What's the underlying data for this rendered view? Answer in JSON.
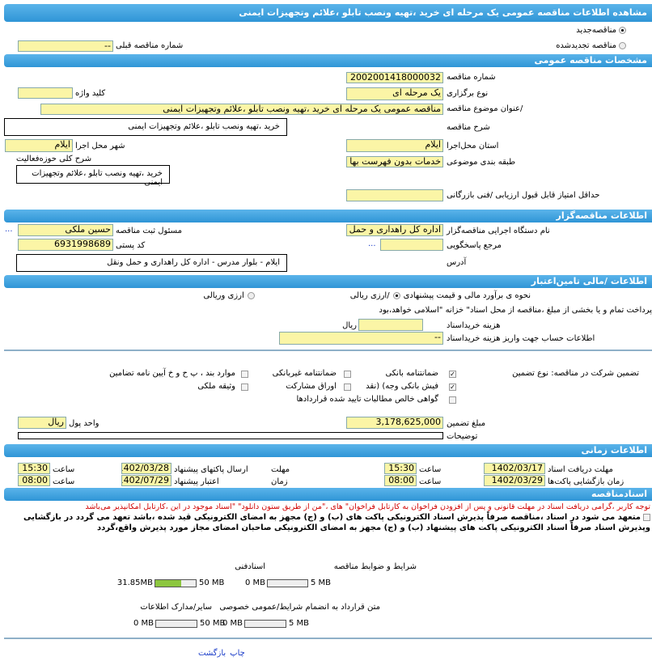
{
  "header": {
    "title": "مشاهده اطلاعات مناقصه  عمومی یک مرحله ای  خرید ،تهیه ونصب تابلو ،علائم وتجهیزات ایمنی"
  },
  "tender_type": {
    "new_label": "مناقصه‌جدید",
    "renewed_label": "مناقصه تجدیدشده",
    "selected": "new",
    "prev_number_label": "شماره  مناقصه قبلی",
    "prev_number_value": "--"
  },
  "general": {
    "section": "مشخصات مناقصه عمومی",
    "number_label": "شماره مناقصه",
    "number": "2002001418000032",
    "type_label": "نوع برگزاری",
    "type": "یک مرحله ای",
    "keyword_label": "کلید واژه",
    "keyword": "",
    "title_label": "/عنوان  موضوع مناقصه",
    "title": "مناقصه عمومی یک مرحله ای خرید ،تهیه ونصب تابلو ،علائم وتجهیزات ایمنی",
    "desc_label": "شرح مناقصه",
    "desc": "خرید ،تهیه  ونصب  تابلو ،علائم  وتجهیزات  ایمنی",
    "province_label": "استان محل‌اجرا",
    "province": "ایلام",
    "city_label": "شهر محل اجرا",
    "city": "ایلام",
    "category_label": "طبقه بندی موضوعی",
    "category": "خدمات بدون فهرست بها",
    "activity_label": "شرح کلی حوزه‌فعالیت",
    "activity": "خرید ،تهیه  ونصب  تابلو ،علائم  وتجهیزات  ایمنی",
    "min_score_label": "حداقل  امتیاز قابل قبول  ارزیابی /فنی بازرگانی",
    "min_score": ""
  },
  "organizer": {
    "section": "اطلاعات مناقصه‌گزار",
    "org_label": "نام دستگاه اجرایی  مناقصه‌گزار",
    "org": "اداره کل راهداری و حمل و نقل",
    "responsible_label": "مسئول ثبت مناقصه",
    "responsible": "حسین ملکی",
    "more": "...",
    "ref_label": "مرجع پاسخگویی",
    "ref": "",
    "postal_label": "کد  پستی",
    "postal": "6931998689",
    "address_label": "آدرس",
    "address": "ایلام - بلوار مدرس - اداره کل راهداری و حمل ونقل"
  },
  "finance": {
    "section": "اطلاعات /مالی تامین‌اعتبار",
    "estimate_label": "نحوه ی برآورد مالی و قیمت پیشنهادی",
    "opt_rial": "/ارزی ریالی",
    "opt_fx": "ارزی وریالی",
    "selected": "rial",
    "payment_note": "پرداخت تمام و یا بخشی از مبلغ  ،مناقصه از محل اسناد\" خزانه \"اسلامی خواهد،بود",
    "doc_cost_label": "هزینه خریداسناد",
    "doc_cost": "",
    "rial": "ریال",
    "account_label": "اطلاعات حساب جهت واریز هزینه خریداسناد",
    "account": "--"
  },
  "guarantee": {
    "label": "تضمین شرکت در مناقصه:   نوع     تضمین",
    "options": [
      {
        "label": "ضمانتنامه  بانکی",
        "checked": true
      },
      {
        "label": "ضمانتنامه  غیربانکی",
        "checked": false
      },
      {
        "label": "موارد  بند ، پ ح و خ آیین نامه تضامین",
        "checked": false
      },
      {
        "label": "فیش  بانکی وجه) (نقد",
        "checked": true
      },
      {
        "label": "اوراق  مشارکت",
        "checked": false
      },
      {
        "label": "وثیقه ملکی",
        "checked": false
      },
      {
        "label": "گواهی  خالص  مطالبات تایید شده قراردادها",
        "checked": false
      }
    ],
    "amount_label": "مبلغ تضمین",
    "amount": "3,178,625,000",
    "currency_label": "واحد پول",
    "currency": "ریال",
    "notes_label": "توضیحات",
    "notes": ""
  },
  "timing": {
    "section": "اطلاعات زمانی",
    "time_label": "ساعت",
    "doc_receive_label": "مهلت  دریافت اسناد",
    "doc_receive_date": "1402/03/17",
    "doc_receive_time": "15:30",
    "submit_label1": "مهلت",
    "submit_label2": "ارسال  پاکتهای پیشنهاد",
    "submit_date": "1402/03/28",
    "submit_time": "15:30",
    "opening_label": "زمان  بازگشایی پاکت‌ها",
    "opening_date": "1402/03/29",
    "opening_time": "08:00",
    "validity_label1": "زمان",
    "validity_label2": "اعتبار پیشنهاد",
    "validity_date": "1402/07/29",
    "validity_time": "08:00"
  },
  "documents": {
    "section": "اسنادمناقصه",
    "warning": "توجه کاربر ،گرامی دریافت اسناد در مهلت قانونی و پس از افزودن فراخوان به کارتابل فراخوان\" های ،\"من از طریق ستون دانلود\" \"اسناد موجود در این ،کارتابل امکانپذیر می‌باشد",
    "commit1": "متعهد می شود در اسناد ،مناقصه صرفاً پذیرش اسناد الکترونیکی پاکت های (ب) و (ج) مجهز به امضای الکترونیکی قید شده ،باشد تعهد می گردد در بازگشایی وپذیرش",
    "commit2": "اسناد صرفاً اسناد الکترونیکی پاکت های پیشنهاد (ب) و (ج) مجهز به امضای الکترونیکی صاحبان امضای مجاز مورد پذیرش واقع،گردد",
    "files": [
      {
        "label": "شرایط و  ضوابط مناقصه",
        "used": "0 MB",
        "max": "5 MB",
        "fraction": 0
      },
      {
        "label": "اسنادفنی",
        "used": "31.85MB",
        "max": "50 MB",
        "fraction": 0.637
      },
      {
        "label": "متن قرارداد به  انضمام شرایط/عمومی خصوصی",
        "used": "0 MB",
        "max": "5 MB",
        "fraction": 0
      },
      {
        "label": "سایر/مدارک اطلاعات",
        "used": "0 MB",
        "max": "50 MB",
        "fraction": 0
      }
    ]
  },
  "footer": {
    "print": "چاپ",
    "back": "بازگشت"
  }
}
